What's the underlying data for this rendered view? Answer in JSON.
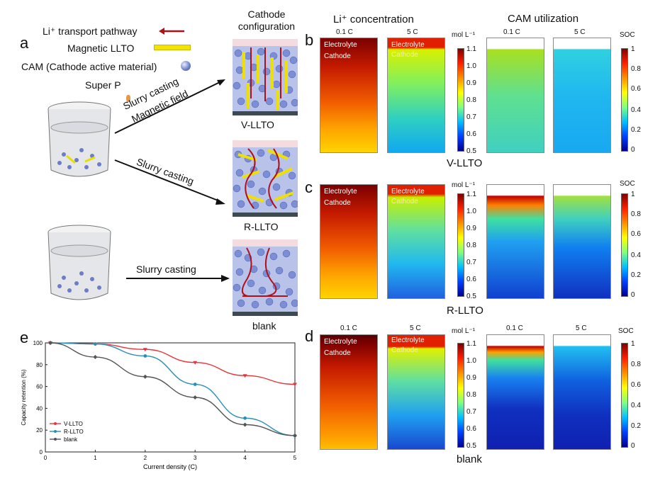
{
  "legend_a": {
    "li_transport": "Li⁺ transport pathway",
    "magnetic_llto": "Magnetic LLTO",
    "cam": "CAM  (Cathode active material)",
    "super_p": "Super P"
  },
  "panel_a": {
    "letter": "a",
    "cathode_config_title": "Cathode configuration",
    "arrow1_label1": "Slurry casting",
    "arrow1_label2": "Magnetic field",
    "arrow2_label": "Slurry casting",
    "arrow3_label": "Slurry casting",
    "config_labels": [
      "V-LLTO",
      "R-LLTO",
      "blank"
    ]
  },
  "headers": {
    "li_conc": "Li⁺ concentration",
    "cam_util": "CAM utilization",
    "rate_01": "0.1 C",
    "rate_5": "5 C",
    "mol_unit": "mol L⁻¹",
    "soc": "SOC",
    "electrolyte": "Electrolyte",
    "cathode": "Cathode"
  },
  "panels": {
    "b": {
      "letter": "b",
      "label": "V-LLTO"
    },
    "c": {
      "letter": "c",
      "label": "R-LLTO"
    },
    "d": {
      "letter": "d",
      "label": "blank"
    }
  },
  "colorbar_li": [
    "1.1",
    "1.0",
    "0.9",
    "0.8",
    "0.7",
    "0.6",
    "0.5"
  ],
  "colorbar_soc": [
    "1",
    "0.8",
    "0.6",
    "0.4",
    "0.2",
    "0"
  ],
  "chart_data": {
    "type": "line",
    "panel_letter": "e",
    "xlabel": "Current density (C)",
    "ylabel": "Capacity retention (%)",
    "xlim": [
      0,
      5
    ],
    "ylim": [
      0,
      100
    ],
    "xticks": [
      "0",
      "1",
      "2",
      "3",
      "4",
      "5"
    ],
    "yticks": [
      "0",
      "20",
      "40",
      "60",
      "80",
      "100"
    ],
    "x": [
      0.1,
      1,
      2,
      3,
      4,
      5
    ],
    "series": [
      {
        "name": "V-LLTO",
        "color": "#e8333a",
        "marker": "triangle",
        "values": [
          100,
          99,
          94,
          82,
          70,
          62
        ]
      },
      {
        "name": "R-LLTO",
        "color": "#2a8fb5",
        "marker": "circle",
        "values": [
          100,
          99,
          88,
          62,
          31,
          15
        ]
      },
      {
        "name": "blank",
        "color": "#555555",
        "marker": "diamond",
        "values": [
          100,
          87,
          69,
          50,
          25,
          15
        ]
      }
    ],
    "legend_position": "lower-left",
    "grid": false
  }
}
